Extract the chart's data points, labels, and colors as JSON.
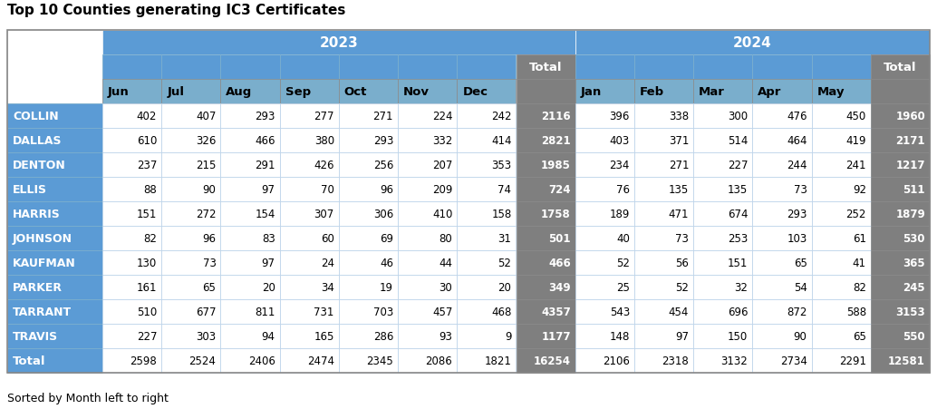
{
  "title": "Top 10 Counties generating IC3 Certificates",
  "subtitle": "Sorted by Month left to right",
  "col_headers_2023": [
    "Jun",
    "Jul",
    "Aug",
    "Sep",
    "Oct",
    "Nov",
    "Dec"
  ],
  "col_headers_2024": [
    "Jan",
    "Feb",
    "Mar",
    "Apr",
    "May"
  ],
  "row_labels": [
    "COLLIN",
    "DALLAS",
    "DENTON",
    "ELLIS",
    "HARRIS",
    "JOHNSON",
    "KAUFMAN",
    "PARKER",
    "TARRANT",
    "TRAVIS",
    "Total"
  ],
  "data_2023": [
    [
      402,
      407,
      293,
      277,
      271,
      224,
      242,
      2116
    ],
    [
      610,
      326,
      466,
      380,
      293,
      332,
      414,
      2821
    ],
    [
      237,
      215,
      291,
      426,
      256,
      207,
      353,
      1985
    ],
    [
      88,
      90,
      97,
      70,
      96,
      209,
      74,
      724
    ],
    [
      151,
      272,
      154,
      307,
      306,
      410,
      158,
      1758
    ],
    [
      82,
      96,
      83,
      60,
      69,
      80,
      31,
      501
    ],
    [
      130,
      73,
      97,
      24,
      46,
      44,
      52,
      466
    ],
    [
      161,
      65,
      20,
      34,
      19,
      30,
      20,
      349
    ],
    [
      510,
      677,
      811,
      731,
      703,
      457,
      468,
      4357
    ],
    [
      227,
      303,
      94,
      165,
      286,
      93,
      9,
      1177
    ],
    [
      2598,
      2524,
      2406,
      2474,
      2345,
      2086,
      1821,
      16254
    ]
  ],
  "data_2024": [
    [
      396,
      338,
      300,
      476,
      450,
      1960
    ],
    [
      403,
      371,
      514,
      464,
      419,
      2171
    ],
    [
      234,
      271,
      227,
      244,
      241,
      1217
    ],
    [
      76,
      135,
      135,
      73,
      92,
      511
    ],
    [
      189,
      471,
      674,
      293,
      252,
      1879
    ],
    [
      40,
      73,
      253,
      103,
      61,
      530
    ],
    [
      52,
      56,
      151,
      65,
      41,
      365
    ],
    [
      25,
      52,
      32,
      54,
      82,
      245
    ],
    [
      543,
      454,
      696,
      872,
      588,
      3153
    ],
    [
      148,
      97,
      150,
      90,
      65,
      550
    ],
    [
      2106,
      2318,
      3132,
      2734,
      2291,
      12581
    ]
  ],
  "color_header_year": "#5b9bd5",
  "color_header_month": "#7aaecc",
  "color_total_col": "#7f7f7f",
  "color_row_label_bg": "#5b9bd5",
  "color_total_row_label_bg": "#5b9bd5",
  "color_white": "#ffffff",
  "color_cell_bg": "#ffffff",
  "color_row_border": "#b0c4d8",
  "text_color_white": "#ffffff",
  "text_color_dark": "#000000",
  "title_fontsize": 11,
  "header_fontsize": 9.5,
  "data_fontsize": 8.5,
  "label_fontsize": 9
}
